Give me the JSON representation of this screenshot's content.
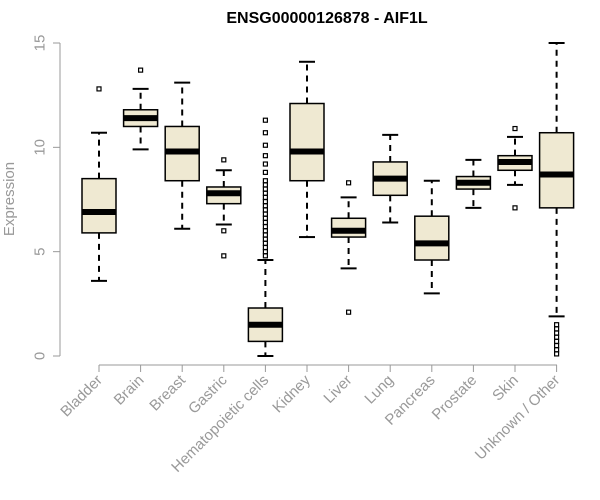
{
  "chart_data": {
    "type": "boxplot",
    "title": "ENSG00000126878 - AIF1L",
    "xlabel": "",
    "ylabel": "Expression",
    "ylim": [
      0,
      15
    ],
    "yticks": [
      0,
      5,
      10,
      15
    ],
    "colors": {
      "box_fill": "#efe9d2",
      "stroke": "#000000",
      "axis": "#999999"
    },
    "categories": [
      "Bladder",
      "Brain",
      "Breast",
      "Gastric",
      "Hematopoietic cells",
      "Kidney",
      "Liver",
      "Lung",
      "Pancreas",
      "Prostate",
      "Skin",
      "Unknown / Other"
    ],
    "boxes": [
      {
        "category": "Bladder",
        "whisker_low": 3.6,
        "q1": 5.9,
        "median": 6.9,
        "q3": 8.5,
        "whisker_high": 10.7,
        "outliers": [
          12.8
        ]
      },
      {
        "category": "Brain",
        "whisker_low": 9.9,
        "q1": 11.0,
        "median": 11.4,
        "q3": 11.8,
        "whisker_high": 12.8,
        "outliers": [
          13.7
        ]
      },
      {
        "category": "Breast",
        "whisker_low": 6.1,
        "q1": 8.4,
        "median": 9.8,
        "q3": 11.0,
        "whisker_high": 13.1,
        "outliers": []
      },
      {
        "category": "Gastric",
        "whisker_low": 6.3,
        "q1": 7.3,
        "median": 7.8,
        "q3": 8.1,
        "whisker_high": 8.9,
        "outliers": [
          9.4,
          6.0,
          4.8
        ]
      },
      {
        "category": "Hematopoietic cells",
        "whisker_low": 0.0,
        "q1": 0.7,
        "median": 1.5,
        "q3": 2.3,
        "whisker_high": 4.6,
        "outliers": [
          4.8,
          5.0,
          5.2,
          5.4,
          5.6,
          5.8,
          6.0,
          6.2,
          6.4,
          6.6,
          6.8,
          7.0,
          7.2,
          7.4,
          7.6,
          7.8,
          8.0,
          8.2,
          8.4,
          8.8,
          9.2,
          9.6,
          10.1,
          10.7,
          11.3
        ]
      },
      {
        "category": "Kidney",
        "whisker_low": 5.7,
        "q1": 8.4,
        "median": 9.8,
        "q3": 12.1,
        "whisker_high": 14.1,
        "outliers": []
      },
      {
        "category": "Liver",
        "whisker_low": 4.2,
        "q1": 5.7,
        "median": 6.0,
        "q3": 6.6,
        "whisker_high": 7.6,
        "outliers": [
          8.3,
          2.1
        ]
      },
      {
        "category": "Lung",
        "whisker_low": 6.4,
        "q1": 7.7,
        "median": 8.5,
        "q3": 9.3,
        "whisker_high": 10.6,
        "outliers": []
      },
      {
        "category": "Pancreas",
        "whisker_low": 3.0,
        "q1": 4.6,
        "median": 5.4,
        "q3": 6.7,
        "whisker_high": 8.4,
        "outliers": []
      },
      {
        "category": "Prostate",
        "whisker_low": 7.1,
        "q1": 8.0,
        "median": 8.3,
        "q3": 8.6,
        "whisker_high": 9.4,
        "outliers": []
      },
      {
        "category": "Skin",
        "whisker_low": 8.2,
        "q1": 8.9,
        "median": 9.3,
        "q3": 9.6,
        "whisker_high": 10.5,
        "outliers": [
          10.9,
          7.1
        ]
      },
      {
        "category": "Unknown / Other",
        "whisker_low": 1.9,
        "q1": 7.1,
        "median": 8.7,
        "q3": 10.7,
        "whisker_high": 15.0,
        "outliers": [
          1.5,
          1.3,
          1.1,
          0.9,
          0.7,
          0.5,
          0.3,
          0.1
        ]
      }
    ]
  }
}
